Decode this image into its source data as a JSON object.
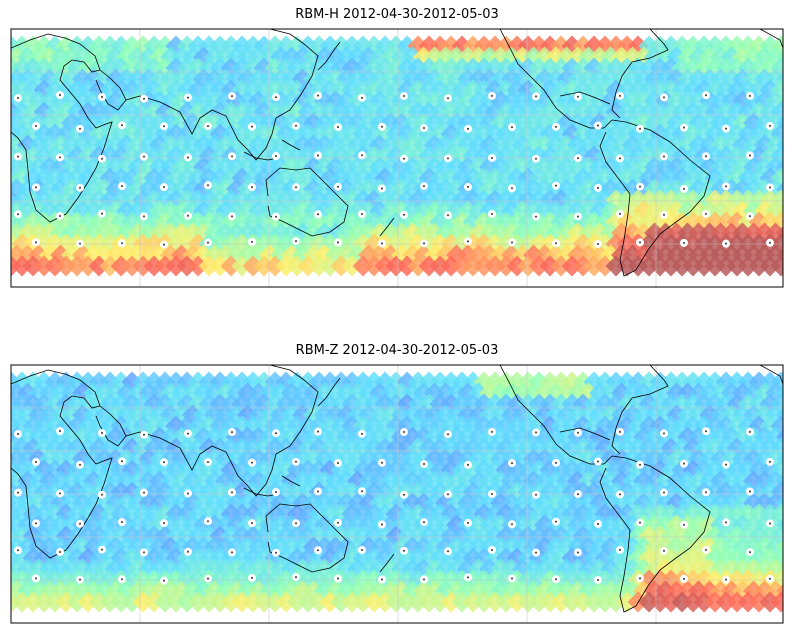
{
  "panels": [
    {
      "title": "RBM-H 2012-04-30-2012-05-03",
      "variant": "H"
    },
    {
      "title": "RBM-Z 2012-04-30-2012-05-03",
      "variant": "Z"
    }
  ],
  "colors": {
    "low": "#6a6aff",
    "mid_low": "#5fdcff",
    "mid": "#8fffb8",
    "mid_high": "#ffef6a",
    "high": "#ff6a5a",
    "very_high": "#b85a5a",
    "land_outline": "#000000",
    "gridline": "#c8c8c8"
  }
}
